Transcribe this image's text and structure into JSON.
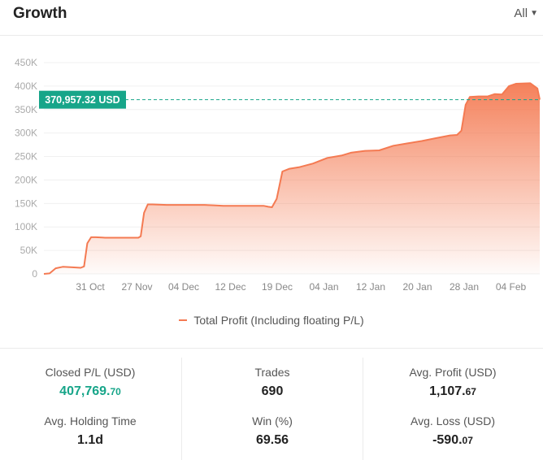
{
  "header": {
    "title": "Growth",
    "range": "All"
  },
  "chart_data": {
    "type": "area",
    "y_ticks": [
      "0",
      "50K",
      "100K",
      "150K",
      "200K",
      "250K",
      "300K",
      "350K",
      "400K",
      "450K"
    ],
    "ylim": [
      0,
      450000
    ],
    "x_ticks": [
      "31 Oct",
      "27 Nov",
      "04 Dec",
      "12 Dec",
      "19 Dec",
      "04 Jan",
      "12 Jan",
      "20 Jan",
      "28 Jan",
      "04 Feb"
    ],
    "marker_label": "370,957.32 USD",
    "marker_value": 370957.32,
    "series": [
      {
        "name": "Total Profit (Including floating P/L)",
        "points": [
          [
            0,
            0
          ],
          [
            1.2,
            1000
          ],
          [
            2.5,
            12000
          ],
          [
            4,
            15000
          ],
          [
            6,
            14000
          ],
          [
            7.8,
            13000
          ],
          [
            8.5,
            16000
          ],
          [
            9.2,
            65000
          ],
          [
            10,
            78000
          ],
          [
            11,
            78000
          ],
          [
            13,
            77000
          ],
          [
            16,
            77000
          ],
          [
            19,
            77000
          ],
          [
            20,
            77000
          ],
          [
            20.5,
            80000
          ],
          [
            21.2,
            130000
          ],
          [
            22,
            148000
          ],
          [
            23,
            148000
          ],
          [
            26,
            147000
          ],
          [
            29,
            147000
          ],
          [
            32,
            147000
          ],
          [
            34,
            147000
          ],
          [
            36,
            146000
          ],
          [
            38,
            145000
          ],
          [
            41,
            145000
          ],
          [
            44,
            145000
          ],
          [
            46.5,
            145000
          ],
          [
            47.5,
            143000
          ],
          [
            48.3,
            142000
          ],
          [
            49.3,
            160000
          ],
          [
            50.5,
            218000
          ],
          [
            52,
            224000
          ],
          [
            54,
            227000
          ],
          [
            57,
            235000
          ],
          [
            60,
            247000
          ],
          [
            63,
            252000
          ],
          [
            65,
            258000
          ],
          [
            68,
            262000
          ],
          [
            71,
            263000
          ],
          [
            74,
            273000
          ],
          [
            77,
            278000
          ],
          [
            80,
            283000
          ],
          [
            83,
            289000
          ],
          [
            86,
            295000
          ],
          [
            87.5,
            296000
          ],
          [
            88.4,
            305000
          ],
          [
            89.3,
            360000
          ],
          [
            90.2,
            377000
          ],
          [
            92,
            378000
          ],
          [
            94,
            378000
          ],
          [
            95.5,
            383000
          ],
          [
            97,
            382000
          ],
          [
            98.5,
            400000
          ],
          [
            100,
            405000
          ],
          [
            103,
            406000
          ],
          [
            104.5,
            395000
          ],
          [
            105,
            371000
          ]
        ]
      }
    ]
  },
  "legend": {
    "label": "Total Profit (Including floating P/L)"
  },
  "stats": {
    "closed_pl": {
      "label": "Closed P/L (USD)",
      "int": "407,769.",
      "dec": "70"
    },
    "trades": {
      "label": "Trades",
      "value": "690"
    },
    "avg_profit": {
      "label": "Avg. Profit (USD)",
      "int": "1,107.",
      "dec": "67"
    },
    "avg_holding": {
      "label": "Avg. Holding Time",
      "value": "1.1d"
    },
    "win": {
      "label": "Win (%)",
      "value": "69.56"
    },
    "avg_loss": {
      "label": "Avg. Loss (USD)",
      "int": "-590.",
      "dec": "07"
    }
  },
  "colors": {
    "accent_line": "#f47a52",
    "marker_bg": "#17a589",
    "positive": "#17a589"
  }
}
